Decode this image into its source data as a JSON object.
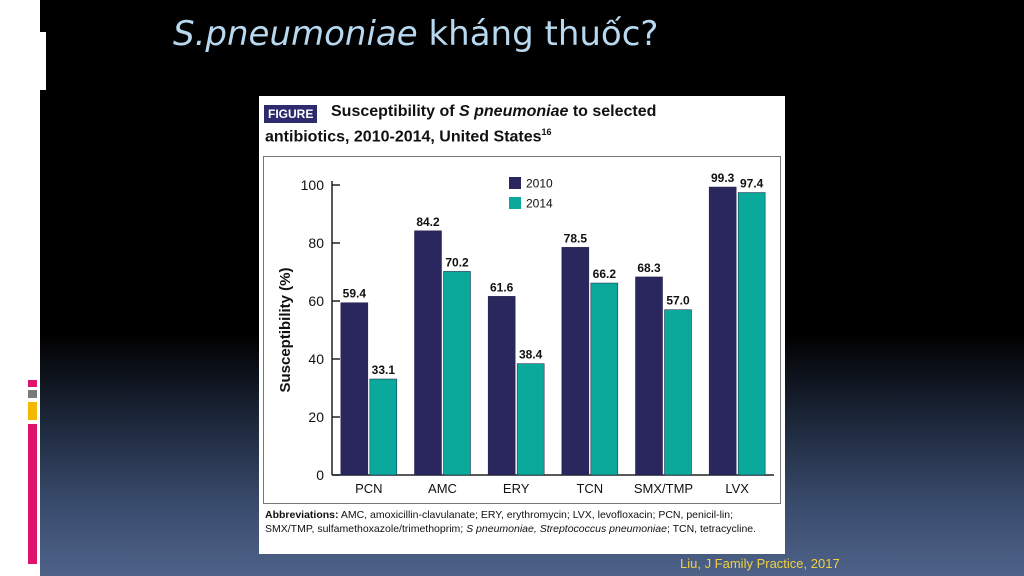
{
  "slide": {
    "title_italic": "S.pneumoniae",
    "title_rest": " kháng thuốc?",
    "citation": "Liu, J Family Practice, 2017"
  },
  "figure": {
    "badge": "FIGURE",
    "title_line1_a": "Susceptibility of ",
    "title_line1_italic": "S pneumoniae",
    "title_line1_b": " to selected",
    "title_line2": "antibiotics, 2010-2014, United States",
    "title_sup": "16",
    "abbreviations_label": "Abbreviations:",
    "abbreviations_text": " AMC, amoxicillin-clavulanate; ERY, erythromycin; LVX, levofloxacin; PCN, penicil-lin; SMX/TMP, sulfamethoxazole/trimethoprim; ",
    "abbreviations_italic": "S pneumoniae, Streptococcus pneumoniae",
    "abbreviations_end": "; TCN, tetracycline."
  },
  "colors": {
    "series_2010": "#29275e",
    "series_2014": "#0aa99c",
    "badge": "#2e2a6e",
    "title": "#b8d8f0",
    "citation": "#f0d040",
    "deco_pink": "#e0136c",
    "deco_gray": "#7a7a7a",
    "deco_yellow": "#f5b800"
  },
  "chart_data": {
    "type": "bar",
    "title": "Susceptibility of S pneumoniae to selected antibiotics, 2010-2014, United States",
    "xlabel": "",
    "ylabel": "Susceptibility (%)",
    "ylim": [
      0,
      100
    ],
    "yticks": [
      0,
      20,
      40,
      60,
      80,
      100
    ],
    "categories": [
      "PCN",
      "AMC",
      "ERY",
      "TCN",
      "SMX/TMP",
      "LVX"
    ],
    "series": [
      {
        "name": "2010",
        "values": [
          59.4,
          84.2,
          61.6,
          78.5,
          68.3,
          99.3
        ],
        "labels": [
          "59.4",
          "84.2",
          "61.6",
          "78.5",
          "68.3",
          "99.3"
        ]
      },
      {
        "name": "2014",
        "values": [
          33.1,
          70.2,
          38.4,
          66.2,
          57.0,
          97.4
        ],
        "labels": [
          "33.1",
          "70.2",
          "38.4",
          "66.2",
          "57.0",
          "97.4"
        ]
      }
    ],
    "legend": "top-center",
    "grid": false
  }
}
